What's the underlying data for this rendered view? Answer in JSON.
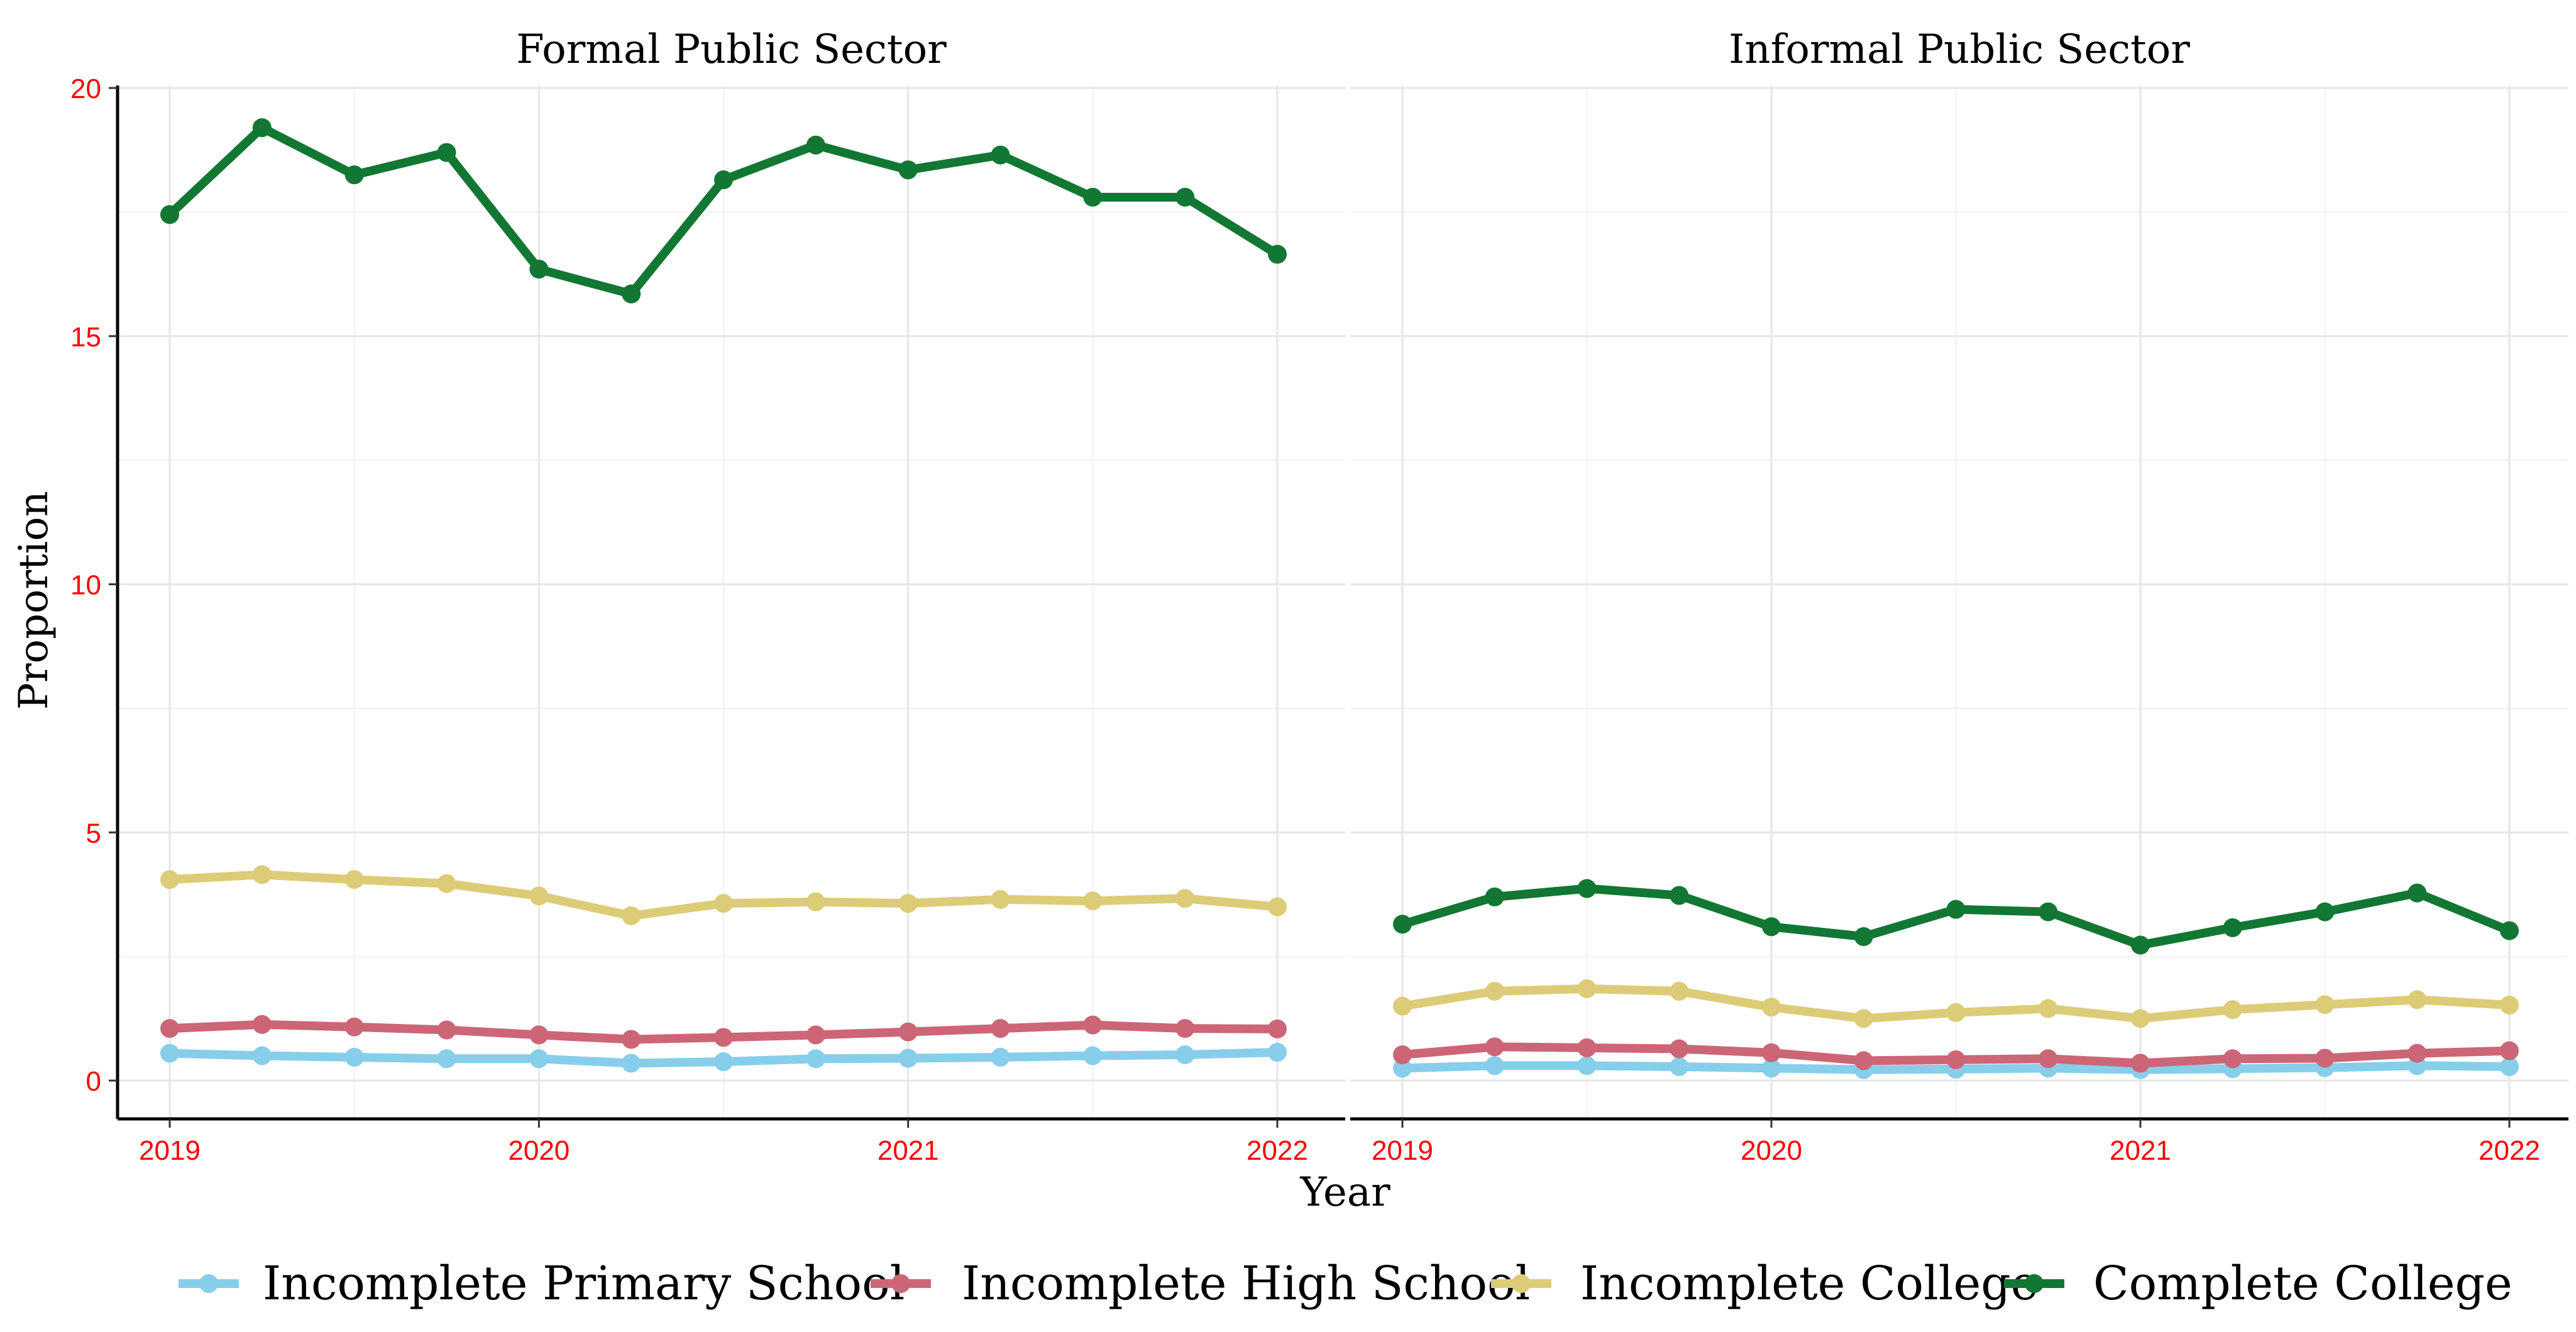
{
  "chart_data": {
    "type": "line",
    "xlabel": "Year",
    "ylabel": "Proportion",
    "ylim": [
      0,
      20
    ],
    "yticks": [
      0,
      5,
      10,
      15,
      20
    ],
    "xticks": [
      2019,
      2020,
      2021,
      2022
    ],
    "xlim": [
      2019,
      2022
    ],
    "grid": true,
    "legend_position": "bottom",
    "tick_label_color": "#ff0000",
    "x": [
      2019.0,
      2019.25,
      2019.5,
      2019.75,
      2020.0,
      2020.25,
      2020.5,
      2020.75,
      2021.0,
      2021.25,
      2021.5,
      2021.75,
      2022.0
    ],
    "legend": [
      {
        "name": "Incomplete Primary School",
        "color": "#87ceeb"
      },
      {
        "name": "Incomplete High School",
        "color": "#cc6677"
      },
      {
        "name": "Incomplete College",
        "color": "#ddcc77"
      },
      {
        "name": "Complete College",
        "color": "#117733"
      }
    ],
    "panels": [
      {
        "title": "Formal Public Sector",
        "series": [
          {
            "name": "Incomplete Primary School",
            "color": "#87ceeb",
            "values": [
              0.55,
              0.5,
              0.47,
              0.44,
              0.44,
              0.35,
              0.38,
              0.44,
              0.45,
              0.47,
              0.5,
              0.52,
              0.57
            ]
          },
          {
            "name": "Incomplete High School",
            "color": "#cc6677",
            "values": [
              1.05,
              1.13,
              1.08,
              1.02,
              0.92,
              0.83,
              0.87,
              0.92,
              0.98,
              1.05,
              1.12,
              1.05,
              1.04
            ]
          },
          {
            "name": "Incomplete College",
            "color": "#ddcc77",
            "values": [
              4.05,
              4.15,
              4.05,
              3.97,
              3.72,
              3.32,
              3.57,
              3.6,
              3.57,
              3.65,
              3.62,
              3.67,
              3.5
            ]
          },
          {
            "name": "Complete College",
            "color": "#117733",
            "values": [
              17.45,
              19.2,
              18.25,
              18.7,
              16.35,
              15.85,
              18.15,
              18.85,
              18.35,
              18.65,
              17.8,
              17.8,
              16.65
            ]
          }
        ]
      },
      {
        "title": "Informal Public Sector",
        "series": [
          {
            "name": "Incomplete Primary School",
            "color": "#87ceeb",
            "values": [
              0.25,
              0.3,
              0.3,
              0.28,
              0.25,
              0.22,
              0.23,
              0.25,
              0.22,
              0.24,
              0.26,
              0.3,
              0.28
            ]
          },
          {
            "name": "Incomplete High School",
            "color": "#cc6677",
            "values": [
              0.52,
              0.68,
              0.66,
              0.64,
              0.56,
              0.4,
              0.42,
              0.44,
              0.35,
              0.44,
              0.45,
              0.55,
              0.6
            ]
          },
          {
            "name": "Incomplete College",
            "color": "#ddcc77",
            "values": [
              1.5,
              1.8,
              1.85,
              1.8,
              1.48,
              1.25,
              1.37,
              1.45,
              1.25,
              1.43,
              1.53,
              1.63,
              1.52
            ]
          },
          {
            "name": "Complete College",
            "color": "#117733",
            "values": [
              3.15,
              3.7,
              3.87,
              3.73,
              3.1,
              2.9,
              3.45,
              3.4,
              2.73,
              3.08,
              3.4,
              3.78,
              3.02
            ]
          }
        ]
      }
    ]
  }
}
